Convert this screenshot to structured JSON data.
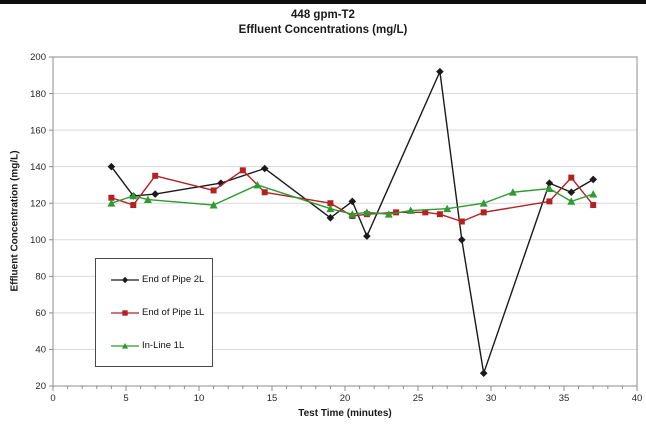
{
  "chart_data": {
    "type": "line",
    "title": "448 gpm-T2",
    "subtitle": "Effluent Concentrations (mg/L)",
    "xlabel": "Test Time (minutes)",
    "ylabel": "Effluent Concentration (mg/L)",
    "xlim": [
      0,
      40
    ],
    "ylim": [
      20,
      200
    ],
    "x_major_tick": 5,
    "x_minor_tick": 1,
    "y_major_tick": 20,
    "grid": "horizontal",
    "legend_position": "inside-left",
    "plot_border_color": "#8c8c8c",
    "gridline_color": "#d9d9d9",
    "series": [
      {
        "name": "End of Pipe 2L",
        "color": "#1a1a1a",
        "marker": "diamond",
        "points": [
          [
            4,
            140
          ],
          [
            5.5,
            124
          ],
          [
            7,
            125
          ],
          [
            11.5,
            131
          ],
          [
            14.5,
            139
          ],
          [
            19,
            112
          ],
          [
            20.5,
            121
          ],
          [
            21.5,
            102
          ],
          [
            26.5,
            192
          ],
          [
            28,
            100
          ],
          [
            29.5,
            27
          ],
          [
            34,
            131
          ],
          [
            35.5,
            126
          ],
          [
            37,
            133
          ]
        ]
      },
      {
        "name": "End of Pipe 1L",
        "color": "#b22222",
        "marker": "square",
        "points": [
          [
            4,
            123
          ],
          [
            5.5,
            119
          ],
          [
            7,
            135
          ],
          [
            11,
            127
          ],
          [
            13,
            138
          ],
          [
            14.5,
            126
          ],
          [
            19,
            120
          ],
          [
            20.5,
            113
          ],
          [
            21.5,
            114
          ],
          [
            23.5,
            115
          ],
          [
            25.5,
            115
          ],
          [
            26.5,
            114
          ],
          [
            28,
            110
          ],
          [
            29.5,
            115
          ],
          [
            34,
            121
          ],
          [
            35.5,
            134
          ],
          [
            37,
            119
          ]
        ]
      },
      {
        "name": "In-Line 1L",
        "color": "#2f9a32",
        "marker": "triangle",
        "points": [
          [
            4,
            120
          ],
          [
            5.5,
            124
          ],
          [
            6.5,
            122
          ],
          [
            11,
            119
          ],
          [
            14,
            130
          ],
          [
            19,
            117
          ],
          [
            20.5,
            114
          ],
          [
            21.5,
            115
          ],
          [
            23,
            114
          ],
          [
            24.5,
            116
          ],
          [
            27,
            117
          ],
          [
            29.5,
            120
          ],
          [
            31.5,
            126
          ],
          [
            34,
            128
          ],
          [
            35.5,
            121
          ],
          [
            37,
            125
          ]
        ]
      }
    ]
  }
}
